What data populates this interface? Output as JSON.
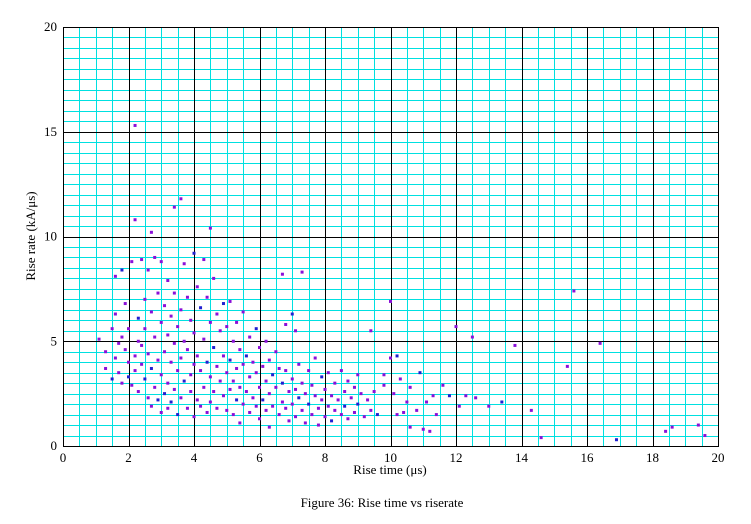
{
  "chart_data": {
    "type": "scatter",
    "caption": "Figure 36: Rise time vs riserate",
    "xlabel": "Rise time (μs)",
    "ylabel": "Rise rate (kA/μs)",
    "xlim": [
      0,
      20
    ],
    "ylim": [
      0,
      20
    ],
    "x_ticks": [
      "0",
      "2",
      "4",
      "6",
      "8",
      "10",
      "12",
      "14",
      "16",
      "18",
      "20"
    ],
    "y_ticks": [
      "0",
      "5",
      "10",
      "15",
      "20"
    ],
    "grid": true,
    "colors": {
      "minor_grid": "#00e0e0",
      "major_grid": "#000000",
      "points": "#8a10d8",
      "points_alt": "#2020d0"
    },
    "series": [
      {
        "values": [
          [
            1.1,
            5.1
          ],
          [
            1.3,
            4.5
          ],
          [
            1.3,
            3.7
          ],
          [
            1.5,
            3.2
          ],
          [
            1.5,
            5.6
          ],
          [
            1.6,
            4.2
          ],
          [
            1.6,
            6.3
          ],
          [
            1.6,
            8.1
          ],
          [
            1.7,
            4.9
          ],
          [
            1.7,
            3.5
          ],
          [
            1.8,
            8.4
          ],
          [
            1.8,
            5.2
          ],
          [
            1.8,
            3.0
          ],
          [
            1.9,
            4.6
          ],
          [
            1.9,
            6.8
          ],
          [
            2.0,
            4.0
          ],
          [
            2.0,
            5.6
          ],
          [
            2.0,
            3.3
          ],
          [
            2.1,
            2.9
          ],
          [
            2.1,
            8.8
          ],
          [
            2.2,
            15.3
          ],
          [
            2.2,
            10.8
          ],
          [
            2.2,
            4.3
          ],
          [
            2.2,
            3.6
          ],
          [
            2.3,
            6.1
          ],
          [
            2.3,
            5.0
          ],
          [
            2.3,
            2.6
          ],
          [
            2.4,
            8.9
          ],
          [
            2.4,
            4.8
          ],
          [
            2.4,
            3.9
          ],
          [
            2.5,
            7.0
          ],
          [
            2.5,
            3.2
          ],
          [
            2.5,
            5.6
          ],
          [
            2.6,
            8.4
          ],
          [
            2.6,
            2.3
          ],
          [
            2.6,
            4.4
          ],
          [
            2.7,
            10.2
          ],
          [
            2.7,
            6.4
          ],
          [
            2.7,
            3.7
          ],
          [
            2.7,
            1.9
          ],
          [
            2.8,
            9.0
          ],
          [
            2.8,
            5.2
          ],
          [
            2.8,
            2.8
          ],
          [
            2.9,
            7.3
          ],
          [
            2.9,
            4.1
          ],
          [
            2.9,
            2.2
          ],
          [
            3.0,
            8.8
          ],
          [
            3.0,
            5.9
          ],
          [
            3.0,
            3.4
          ],
          [
            3.0,
            1.6
          ],
          [
            3.1,
            6.7
          ],
          [
            3.1,
            4.5
          ],
          [
            3.1,
            2.5
          ],
          [
            3.2,
            7.9
          ],
          [
            3.2,
            5.3
          ],
          [
            3.2,
            3.0
          ],
          [
            3.2,
            1.8
          ],
          [
            3.3,
            6.2
          ],
          [
            3.3,
            4.0
          ],
          [
            3.3,
            2.1
          ],
          [
            3.4,
            11.4
          ],
          [
            3.4,
            7.3
          ],
          [
            3.4,
            4.9
          ],
          [
            3.4,
            2.7
          ],
          [
            3.5,
            5.7
          ],
          [
            3.5,
            3.6
          ],
          [
            3.5,
            1.5
          ],
          [
            3.6,
            11.8
          ],
          [
            3.6,
            6.5
          ],
          [
            3.6,
            4.2
          ],
          [
            3.6,
            2.3
          ],
          [
            3.7,
            8.7
          ],
          [
            3.7,
            5.0
          ],
          [
            3.7,
            3.1
          ],
          [
            3.8,
            7.1
          ],
          [
            3.8,
            4.6
          ],
          [
            3.8,
            1.8
          ],
          [
            3.9,
            6.0
          ],
          [
            3.9,
            3.4
          ],
          [
            3.9,
            2.6
          ],
          [
            4.0,
            9.2
          ],
          [
            4.0,
            5.4
          ],
          [
            4.0,
            3.9
          ],
          [
            4.0,
            1.4
          ],
          [
            4.1,
            7.6
          ],
          [
            4.1,
            4.3
          ],
          [
            4.1,
            2.2
          ],
          [
            4.2,
            6.6
          ],
          [
            4.2,
            3.6
          ],
          [
            4.2,
            1.9
          ],
          [
            4.3,
            8.9
          ],
          [
            4.3,
            5.1
          ],
          [
            4.3,
            2.8
          ],
          [
            4.4,
            7.1
          ],
          [
            4.4,
            4.0
          ],
          [
            4.4,
            1.6
          ],
          [
            4.5,
            10.4
          ],
          [
            4.5,
            5.9
          ],
          [
            4.5,
            3.3
          ],
          [
            4.5,
            2.1
          ],
          [
            4.6,
            8.0
          ],
          [
            4.6,
            4.7
          ],
          [
            4.6,
            2.6
          ],
          [
            4.7,
            6.3
          ],
          [
            4.7,
            3.8
          ],
          [
            4.7,
            1.8
          ],
          [
            4.8,
            5.5
          ],
          [
            4.8,
            3.1
          ],
          [
            4.9,
            6.8
          ],
          [
            4.9,
            4.3
          ],
          [
            4.9,
            2.4
          ],
          [
            5.0,
            5.7
          ],
          [
            5.0,
            3.5
          ],
          [
            5.0,
            1.7
          ],
          [
            5.1,
            6.9
          ],
          [
            5.1,
            4.1
          ],
          [
            5.1,
            2.7
          ],
          [
            5.2,
            5.0
          ],
          [
            5.2,
            3.1
          ],
          [
            5.2,
            1.5
          ],
          [
            5.3,
            5.9
          ],
          [
            5.3,
            3.7
          ],
          [
            5.3,
            2.2
          ],
          [
            5.4,
            4.6
          ],
          [
            5.4,
            2.8
          ],
          [
            5.4,
            1.1
          ],
          [
            5.5,
            6.4
          ],
          [
            5.5,
            3.9
          ],
          [
            5.5,
            2.0
          ],
          [
            5.6,
            4.3
          ],
          [
            5.6,
            2.6
          ],
          [
            5.7,
            5.2
          ],
          [
            5.7,
            3.3
          ],
          [
            5.7,
            1.6
          ],
          [
            5.8,
            4.0
          ],
          [
            5.8,
            2.3
          ],
          [
            5.9,
            5.6
          ],
          [
            5.9,
            3.5
          ],
          [
            5.9,
            1.9
          ],
          [
            6.0,
            4.7
          ],
          [
            6.0,
            2.8
          ],
          [
            6.0,
            1.3
          ],
          [
            6.1,
            3.8
          ],
          [
            6.1,
            2.2
          ],
          [
            6.2,
            5.0
          ],
          [
            6.2,
            3.1
          ],
          [
            6.2,
            1.7
          ],
          [
            6.3,
            4.1
          ],
          [
            6.3,
            2.5
          ],
          [
            6.3,
            0.9
          ],
          [
            6.4,
            3.4
          ],
          [
            6.4,
            1.9
          ],
          [
            6.5,
            4.5
          ],
          [
            6.5,
            2.8
          ],
          [
            6.6,
            3.7
          ],
          [
            6.6,
            1.5
          ],
          [
            6.7,
            8.2
          ],
          [
            6.7,
            3.0
          ],
          [
            6.7,
            2.1
          ],
          [
            6.8,
            5.8
          ],
          [
            6.8,
            3.6
          ],
          [
            6.8,
            1.8
          ],
          [
            6.9,
            2.6
          ],
          [
            6.9,
            1.2
          ],
          [
            7.0,
            6.3
          ],
          [
            7.0,
            3.2
          ],
          [
            7.0,
            2.0
          ],
          [
            7.1,
            5.5
          ],
          [
            7.1,
            2.7
          ],
          [
            7.1,
            1.4
          ],
          [
            7.2,
            3.9
          ],
          [
            7.2,
            2.3
          ],
          [
            7.3,
            8.3
          ],
          [
            7.3,
            3.0
          ],
          [
            7.3,
            1.7
          ],
          [
            7.4,
            2.5
          ],
          [
            7.4,
            1.1
          ],
          [
            7.5,
            3.6
          ],
          [
            7.5,
            2.0
          ],
          [
            7.6,
            2.9
          ],
          [
            7.6,
            1.5
          ],
          [
            7.7,
            4.2
          ],
          [
            7.7,
            2.4
          ],
          [
            7.8,
            1.8
          ],
          [
            7.8,
            1.0
          ],
          [
            7.9,
            3.3
          ],
          [
            7.9,
            2.2
          ],
          [
            8.0,
            2.7
          ],
          [
            8.0,
            1.4
          ],
          [
            8.1,
            3.5
          ],
          [
            8.1,
            1.9
          ],
          [
            8.2,
            2.4
          ],
          [
            8.2,
            1.2
          ],
          [
            8.3,
            3.0
          ],
          [
            8.3,
            1.7
          ],
          [
            8.4,
            2.2
          ],
          [
            8.5,
            3.6
          ],
          [
            8.5,
            1.5
          ],
          [
            8.6,
            2.6
          ],
          [
            8.6,
            1.9
          ],
          [
            8.7,
            3.1
          ],
          [
            8.7,
            1.3
          ],
          [
            8.8,
            2.3
          ],
          [
            8.9,
            2.8
          ],
          [
            8.9,
            1.6
          ],
          [
            9.0,
            3.4
          ],
          [
            9.0,
            2.0
          ],
          [
            9.1,
            2.5
          ],
          [
            9.2,
            1.4
          ],
          [
            9.3,
            2.2
          ],
          [
            9.4,
            5.5
          ],
          [
            9.4,
            1.7
          ],
          [
            9.5,
            2.6
          ],
          [
            9.6,
            1.5
          ],
          [
            9.8,
            3.4
          ],
          [
            9.8,
            2.9
          ],
          [
            10.0,
            4.2
          ],
          [
            10.0,
            6.9
          ],
          [
            10.1,
            2.5
          ],
          [
            10.2,
            1.5
          ],
          [
            10.2,
            4.3
          ],
          [
            10.3,
            3.2
          ],
          [
            10.4,
            1.6
          ],
          [
            10.5,
            2.1
          ],
          [
            10.6,
            2.8
          ],
          [
            10.6,
            0.9
          ],
          [
            10.8,
            1.7
          ],
          [
            10.9,
            3.5
          ],
          [
            11.0,
            0.8
          ],
          [
            11.1,
            2.1
          ],
          [
            11.2,
            0.7
          ],
          [
            11.3,
            2.4
          ],
          [
            11.4,
            1.5
          ],
          [
            11.6,
            2.9
          ],
          [
            11.8,
            2.4
          ],
          [
            12.0,
            5.7
          ],
          [
            12.1,
            1.9
          ],
          [
            12.3,
            2.4
          ],
          [
            12.5,
            5.2
          ],
          [
            12.6,
            2.3
          ],
          [
            13.0,
            1.9
          ],
          [
            13.4,
            2.1
          ],
          [
            13.8,
            4.8
          ],
          [
            14.3,
            1.7
          ],
          [
            14.6,
            0.4
          ],
          [
            15.4,
            3.8
          ],
          [
            15.6,
            7.4
          ],
          [
            16.4,
            4.9
          ],
          [
            16.9,
            0.3
          ],
          [
            18.4,
            0.7
          ],
          [
            18.6,
            0.9
          ],
          [
            19.4,
            1.0
          ],
          [
            19.6,
            0.5
          ]
        ]
      }
    ]
  }
}
